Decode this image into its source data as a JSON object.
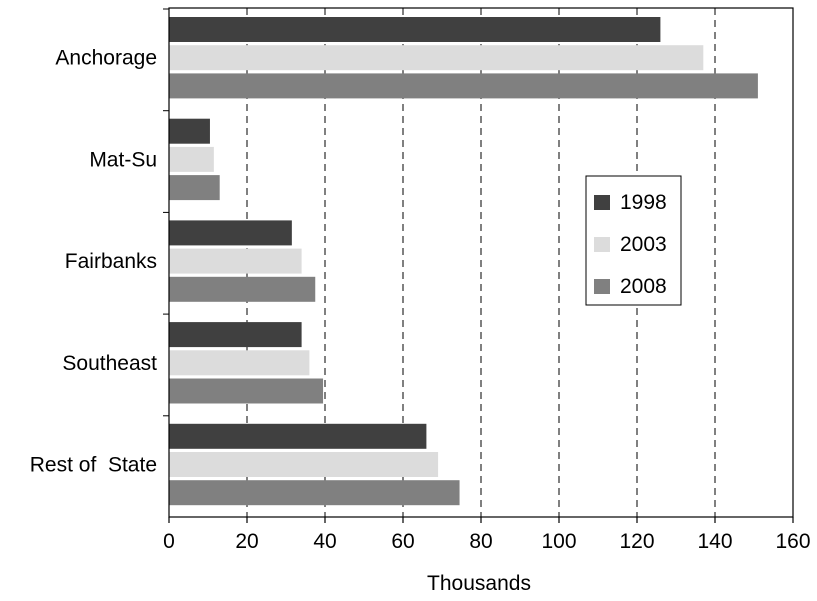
{
  "chart_data": {
    "type": "bar",
    "orientation": "horizontal",
    "title": "",
    "xlabel": "Thousands",
    "ylabel": "",
    "xlim": [
      0,
      160
    ],
    "xticks": [
      0,
      20,
      40,
      60,
      80,
      100,
      120,
      140,
      160
    ],
    "grid": "vertical dashed",
    "legend_position": "right",
    "categories": [
      "Anchorage",
      "Mat-Su",
      "Fairbanks",
      "Southeast",
      "Rest of  State"
    ],
    "series": [
      {
        "name": "1998",
        "color": "#404040",
        "values": [
          126,
          10.5,
          31.5,
          34,
          66
        ]
      },
      {
        "name": "2003",
        "color": "#dcdcdc",
        "values": [
          137,
          11.5,
          34,
          36,
          69
        ]
      },
      {
        "name": "2008",
        "color": "#808080",
        "values": [
          151,
          13,
          37.5,
          39.5,
          74.5
        ]
      }
    ]
  }
}
